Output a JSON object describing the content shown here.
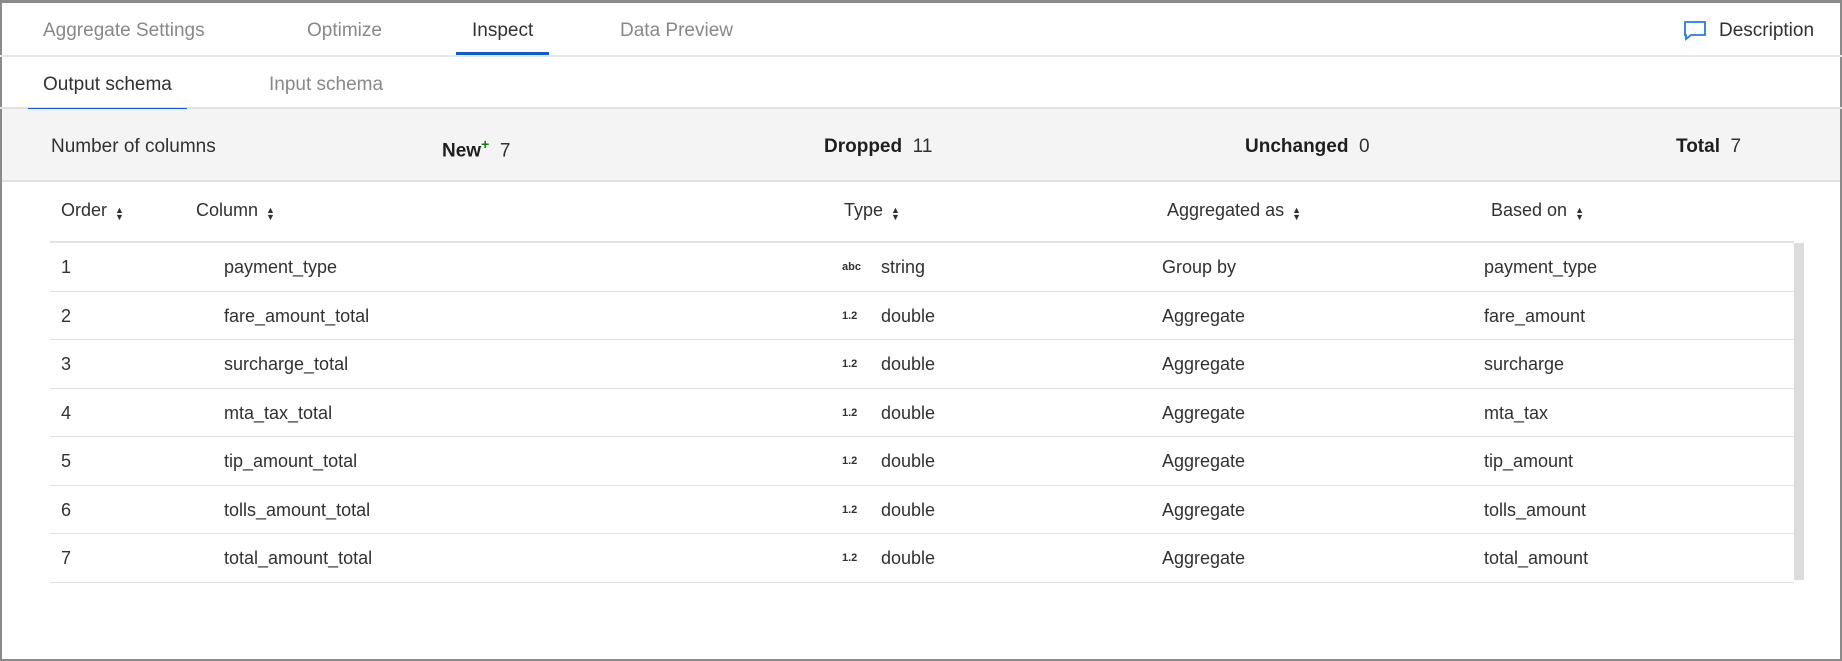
{
  "tabs": [
    {
      "label": "Aggregate Settings"
    },
    {
      "label": "Optimize"
    },
    {
      "label": "Inspect",
      "active": true
    },
    {
      "label": "Data Preview"
    }
  ],
  "description_label": "Description",
  "subtabs": [
    {
      "label": "Output schema",
      "active": true
    },
    {
      "label": "Input schema"
    }
  ],
  "summary": {
    "label": "Number of columns",
    "new_label": "New",
    "new_marker": "+",
    "new": "7",
    "dropped_label": "Dropped",
    "dropped": "11",
    "unchanged_label": "Unchanged",
    "unchanged": "0",
    "total_label": "Total",
    "total": "7"
  },
  "headers": [
    "Order",
    "Column",
    "Type",
    "Aggregated as",
    "Based on"
  ],
  "rows": [
    {
      "order": "1",
      "column": "payment_type",
      "type_icon": "abc",
      "type": "string",
      "agg": "Group by",
      "based": "payment_type"
    },
    {
      "order": "2",
      "column": "fare_amount_total",
      "type_icon": "1.2",
      "type": "double",
      "agg": "Aggregate",
      "based": "fare_amount"
    },
    {
      "order": "3",
      "column": "surcharge_total",
      "type_icon": "1.2",
      "type": "double",
      "agg": "Aggregate",
      "based": "surcharge"
    },
    {
      "order": "4",
      "column": "mta_tax_total",
      "type_icon": "1.2",
      "type": "double",
      "agg": "Aggregate",
      "based": "mta_tax"
    },
    {
      "order": "5",
      "column": "tip_amount_total",
      "type_icon": "1.2",
      "type": "double",
      "agg": "Aggregate",
      "based": "tip_amount"
    },
    {
      "order": "6",
      "column": "tolls_amount_total",
      "type_icon": "1.2",
      "type": "double",
      "agg": "Aggregate",
      "based": "tolls_amount"
    },
    {
      "order": "7",
      "column": "total_amount_total",
      "type_icon": "1.2",
      "type": "double",
      "agg": "Aggregate",
      "based": "total_amount"
    }
  ],
  "colors": {
    "accent": "#0f5bd1",
    "new_marker": "#107c10",
    "icon": "#2a79e0"
  }
}
